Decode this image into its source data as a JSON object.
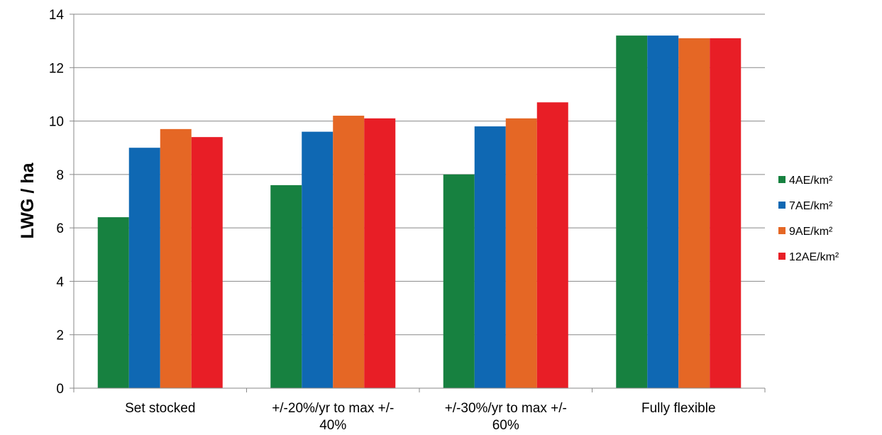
{
  "chart_data": {
    "type": "bar",
    "ylabel": "LWG / ha",
    "ylim": [
      0,
      14
    ],
    "yticks": [
      0,
      2,
      4,
      6,
      8,
      10,
      12,
      14
    ],
    "grid": true,
    "legend_position": "right",
    "categories": [
      [
        "Set stocked"
      ],
      [
        "+/-20%/yr to max +/-",
        "40%"
      ],
      [
        "+/-30%/yr to max +/-",
        "60%"
      ],
      [
        "Fully flexible"
      ]
    ],
    "series": [
      {
        "name": "4AE/km²",
        "color": "#178140",
        "values": [
          6.4,
          7.6,
          8.0,
          13.2
        ]
      },
      {
        "name": "7AE/km²",
        "color": "#0f68b3",
        "values": [
          9.0,
          9.6,
          9.8,
          13.2
        ]
      },
      {
        "name": "9AE/km²",
        "color": "#e56725",
        "values": [
          9.7,
          10.2,
          10.1,
          13.1
        ]
      },
      {
        "name": "12AE/km²",
        "color": "#e81e26",
        "values": [
          9.4,
          10.1,
          10.7,
          13.1
        ]
      }
    ]
  }
}
